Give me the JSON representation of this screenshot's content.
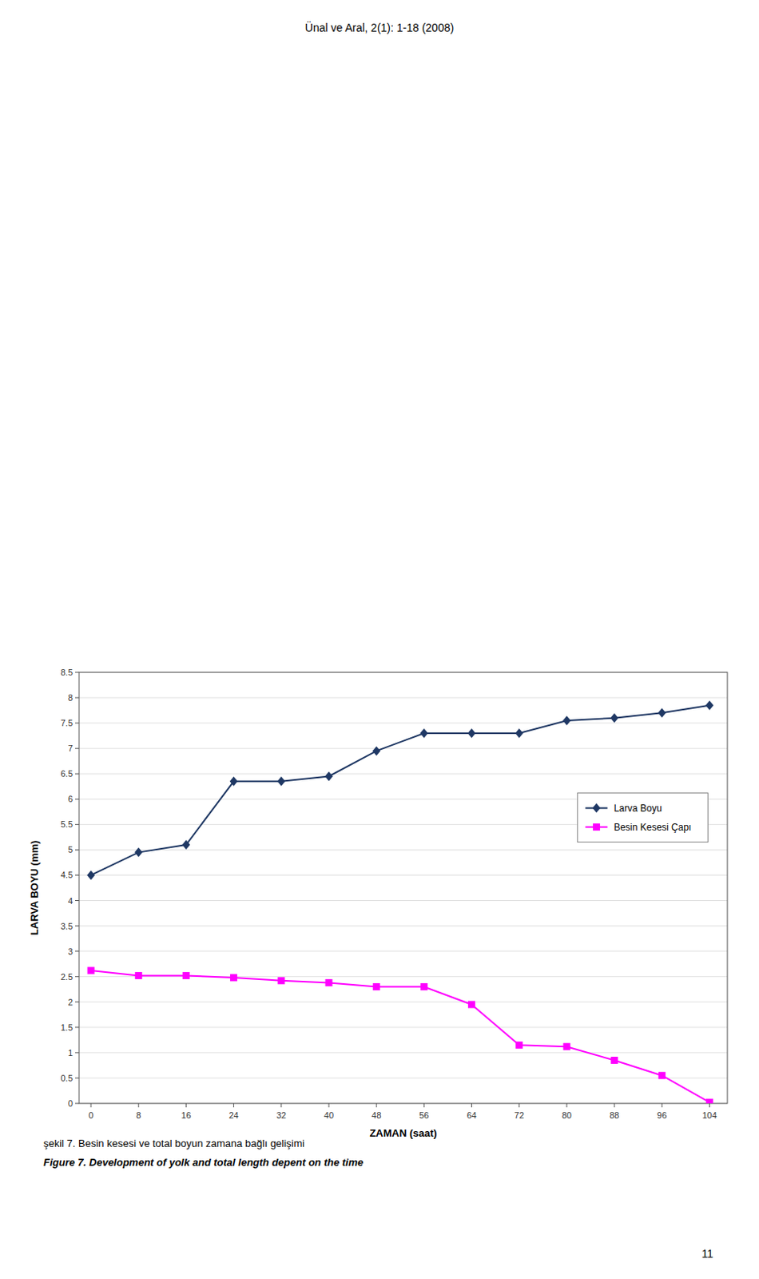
{
  "header": "Ünal ve Aral, 2(1): 1-18 (2008)",
  "captions": [
    "şekil 7. Besin kesesi ve total boyun zamana bağlı gelişimi",
    "Figure 7. Development of yolk and total length depent on the time"
  ],
  "page_number": "11",
  "chart_data": {
    "type": "line",
    "xlabel": "ZAMAN (saat)",
    "ylabel": "LARVA BOYU (mm)",
    "x": [
      0,
      8,
      16,
      24,
      32,
      40,
      48,
      56,
      64,
      72,
      80,
      88,
      96,
      104
    ],
    "series": [
      {
        "name": "Larva Boyu",
        "color": "#1F3864",
        "marker": "diamond",
        "values": [
          4.5,
          4.95,
          5.1,
          6.35,
          6.35,
          6.45,
          6.95,
          7.3,
          7.3,
          7.3,
          7.55,
          7.6,
          7.7,
          7.85
        ]
      },
      {
        "name": "Besin Kesesi Çapı",
        "color": "#FF00FF",
        "marker": "square",
        "values": [
          2.62,
          2.52,
          2.52,
          2.48,
          2.42,
          2.38,
          2.3,
          2.3,
          1.95,
          1.15,
          1.12,
          0.85,
          0.55,
          0.02
        ]
      }
    ],
    "xlim": [
      -2,
      107
    ],
    "xticks": [
      0,
      8,
      16,
      24,
      32,
      40,
      48,
      56,
      64,
      72,
      80,
      88,
      96,
      104
    ],
    "ylim": [
      0,
      8.5
    ],
    "yticks": [
      0,
      0.5,
      1,
      1.5,
      2,
      2.5,
      3,
      3.5,
      4,
      4.5,
      5,
      5.5,
      6,
      6.5,
      7,
      7.5,
      8,
      8.5
    ],
    "grid": true,
    "legend": "upper right"
  }
}
